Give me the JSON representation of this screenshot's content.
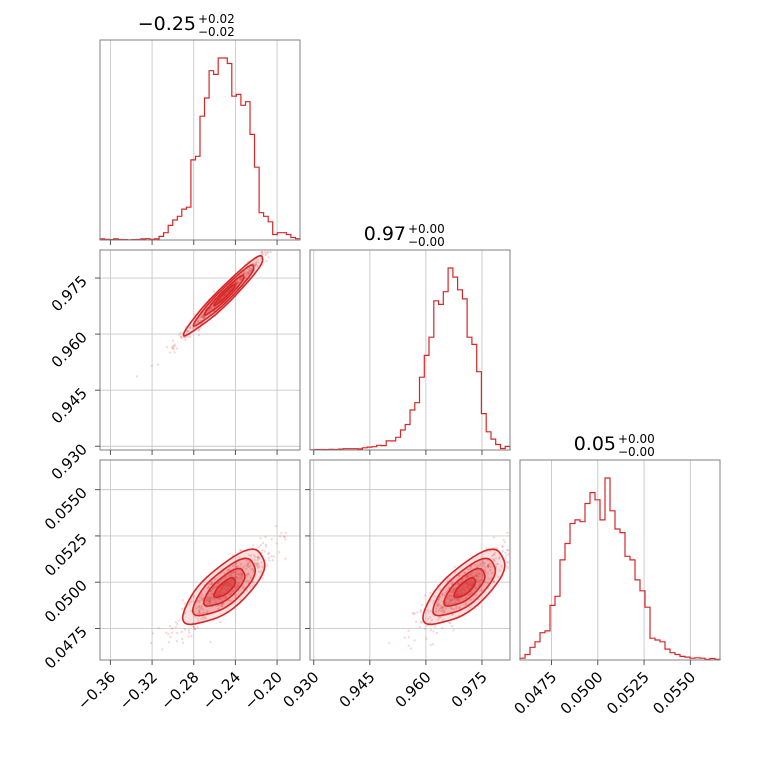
{
  "chart_data": {
    "type": "corner",
    "colors": {
      "line": "#d62728",
      "fill": "#d62728",
      "grid": "#c8c8c8",
      "frame": "#808080"
    },
    "grid": true,
    "params": [
      {
        "id": "p0",
        "title": {
          "value": "−0.25",
          "plus": "+0.02",
          "minus": "−0.02"
        },
        "range": [
          -0.37,
          -0.178
        ],
        "ticks": [
          -0.36,
          -0.32,
          -0.28,
          -0.24,
          -0.2
        ],
        "tick_labels": [
          "−0.36",
          "−0.32",
          "−0.28",
          "−0.24",
          "−0.20"
        ],
        "median": -0.25,
        "sigma": 0.018,
        "hist": [
          0.006,
          0.004,
          0.002,
          0.006,
          0.003,
          0.002,
          0.001,
          0.002,
          0.003,
          0.006,
          0.007,
          0.004,
          0.006,
          0.02,
          0.04,
          0.08,
          0.11,
          0.13,
          0.17,
          0.18,
          0.44,
          0.46,
          0.68,
          0.78,
          0.93,
          0.91,
          1.0,
          1.0,
          0.97,
          0.79,
          0.8,
          0.74,
          0.76,
          0.58,
          0.4,
          0.15,
          0.13,
          0.1,
          0.03,
          0.04,
          0.04,
          0.03,
          0.014,
          0.007
        ]
      },
      {
        "id": "p1",
        "title": {
          "value": "0.97",
          "plus": "+0.00",
          "minus": "−0.00"
        },
        "range": [
          0.929,
          0.9825
        ],
        "ticks": [
          0.93,
          0.945,
          0.96,
          0.975
        ],
        "tick_labels": [
          "0.930",
          "0.945",
          "0.960",
          "0.975"
        ],
        "median": 0.9705,
        "sigma": 0.005,
        "hist": [
          0.001,
          0.003,
          0.003,
          0.002,
          0.004,
          0.003,
          0.005,
          0.007,
          0.007,
          0.007,
          0.006,
          0.012,
          0.016,
          0.018,
          0.026,
          0.024,
          0.05,
          0.05,
          0.07,
          0.11,
          0.14,
          0.22,
          0.26,
          0.4,
          0.52,
          0.62,
          0.82,
          0.8,
          0.87,
          1.0,
          0.95,
          0.88,
          0.83,
          0.62,
          0.58,
          0.43,
          0.2,
          0.1,
          0.06,
          0.03,
          0.008,
          0.02
        ]
      },
      {
        "id": "p2",
        "title": {
          "value": "0.05",
          "plus": "+0.00",
          "minus": "−0.00"
        },
        "range": [
          0.0458,
          0.0566
        ],
        "ticks": [
          0.0475,
          0.05,
          0.0525,
          0.055
        ],
        "tick_labels": [
          "0.0475",
          "0.0500",
          "0.0525",
          "0.0550"
        ],
        "median": 0.0497,
        "sigma": 0.0009,
        "hist": [
          0.01,
          0.03,
          0.07,
          0.1,
          0.15,
          0.16,
          0.3,
          0.35,
          0.55,
          0.64,
          0.75,
          0.77,
          0.76,
          0.86,
          0.92,
          0.88,
          0.77,
          1.0,
          0.82,
          0.72,
          0.7,
          0.57,
          0.55,
          0.44,
          0.38,
          0.29,
          0.12,
          0.11,
          0.1,
          0.06,
          0.04,
          0.03,
          0.02,
          0.016,
          0.01,
          0.012,
          0.01,
          0.004,
          0.008,
          0.004
        ]
      }
    ],
    "pairs": [
      {
        "x": "p0",
        "y": "p1",
        "rho": 0.985
      },
      {
        "x": "p0",
        "y": "p2",
        "rho": 0.88
      },
      {
        "x": "p1",
        "y": "p2",
        "rho": 0.88
      }
    ]
  }
}
